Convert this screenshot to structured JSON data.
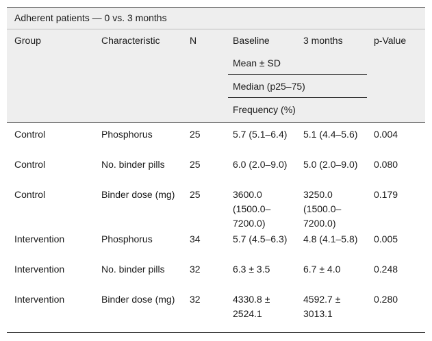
{
  "caption": "Adherent patients — 0 vs. 3 months",
  "headers": {
    "group": "Group",
    "characteristic": "Characteristic",
    "n": "N",
    "baseline": "Baseline",
    "months3": "3 months",
    "pvalue": "p-Value",
    "sub1": "Mean ± SD",
    "sub2": "Median (p25–75)",
    "sub3": "Frequency (%)"
  },
  "rows": [
    {
      "group": "Control",
      "characteristic": "Phosphorus",
      "n": "25",
      "baseline": "5.7 (5.1–6.4)",
      "months3": "5.1 (4.4–5.6)",
      "p": "0.004"
    },
    {
      "group": "Control",
      "characteristic": "No. binder pills",
      "n": "25",
      "baseline": "6.0 (2.0–9.0)",
      "months3": "5.0 (2.0–9.0)",
      "p": "0.080"
    },
    {
      "group": "Control",
      "characteristic": "Binder dose (mg)",
      "n": "25",
      "baseline": "3600.0 (1500.0–7200.0)",
      "months3": "3250.0 (1500.0–7200.0)",
      "p": "0.179"
    },
    {
      "group": "Intervention",
      "characteristic": "Phosphorus",
      "n": "34",
      "baseline": "5.7 (4.5–6.3)",
      "months3": "4.8 (4.1–5.8)",
      "p": "0.005"
    },
    {
      "group": "Intervention",
      "characteristic": "No. binder pills",
      "n": "32",
      "baseline": "6.3 ± 3.5",
      "months3": "6.7 ± 4.0",
      "p": "0.248"
    },
    {
      "group": "Intervention",
      "characteristic": "Binder dose (mg)",
      "n": "32",
      "baseline": "4330.8 ± 2524.1",
      "months3": "4592.7 ± 3013.1",
      "p": "0.280"
    }
  ]
}
